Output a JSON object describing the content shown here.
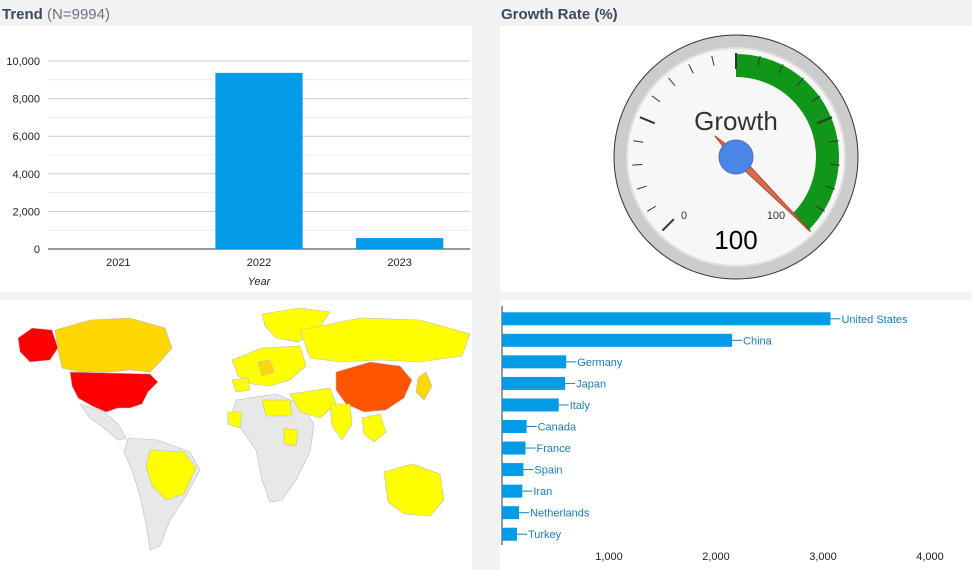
{
  "trend": {
    "title": "Trend",
    "subtitle": "(N=9994)"
  },
  "growth": {
    "title": "Growth Rate (%)"
  },
  "chart_data": [
    {
      "type": "bar",
      "name": "trend",
      "categories": [
        "2021",
        "2022",
        "2023"
      ],
      "values": [
        0,
        9370,
        580
      ],
      "xlabel": "Year",
      "ylabel": "",
      "ylim": [
        0,
        10000
      ],
      "yticks": [
        "0",
        "2,000",
        "4,000",
        "6,000",
        "8,000",
        "10,000"
      ],
      "yticks_values": [
        0,
        2000,
        4000,
        6000,
        8000,
        10000
      ],
      "grid": true,
      "color": "#039be5"
    },
    {
      "type": "gauge",
      "name": "growth-rate",
      "label": "Growth",
      "value": 100,
      "value_text": "100",
      "min": 0,
      "max": 100,
      "min_label": "0",
      "max_label": "100",
      "green_from": 0,
      "green_to": 100,
      "green_color": "#109618"
    },
    {
      "type": "map",
      "name": "world-map",
      "colors": {
        "high": "#ff0000",
        "upper": "#ff5500",
        "mid": "#ffd700",
        "low": "#ffff00",
        "none": "#e8e8e8"
      }
    },
    {
      "type": "bar-horizontal",
      "name": "country-bars",
      "categories": [
        "United States",
        "China",
        "Germany",
        "Japan",
        "Italy",
        "Canada",
        "France",
        "Spain",
        "Iran",
        "Netherlands",
        "Turkey"
      ],
      "values": [
        3070,
        2150,
        600,
        590,
        530,
        230,
        220,
        200,
        190,
        160,
        140
      ],
      "xlim": [
        0,
        4000
      ],
      "xticks": [
        "1,000",
        "2,000",
        "3,000",
        "4,000"
      ],
      "xticks_values": [
        1000,
        2000,
        3000,
        4000
      ],
      "color": "#039be5",
      "label_color": "#1a7fb8"
    }
  ]
}
